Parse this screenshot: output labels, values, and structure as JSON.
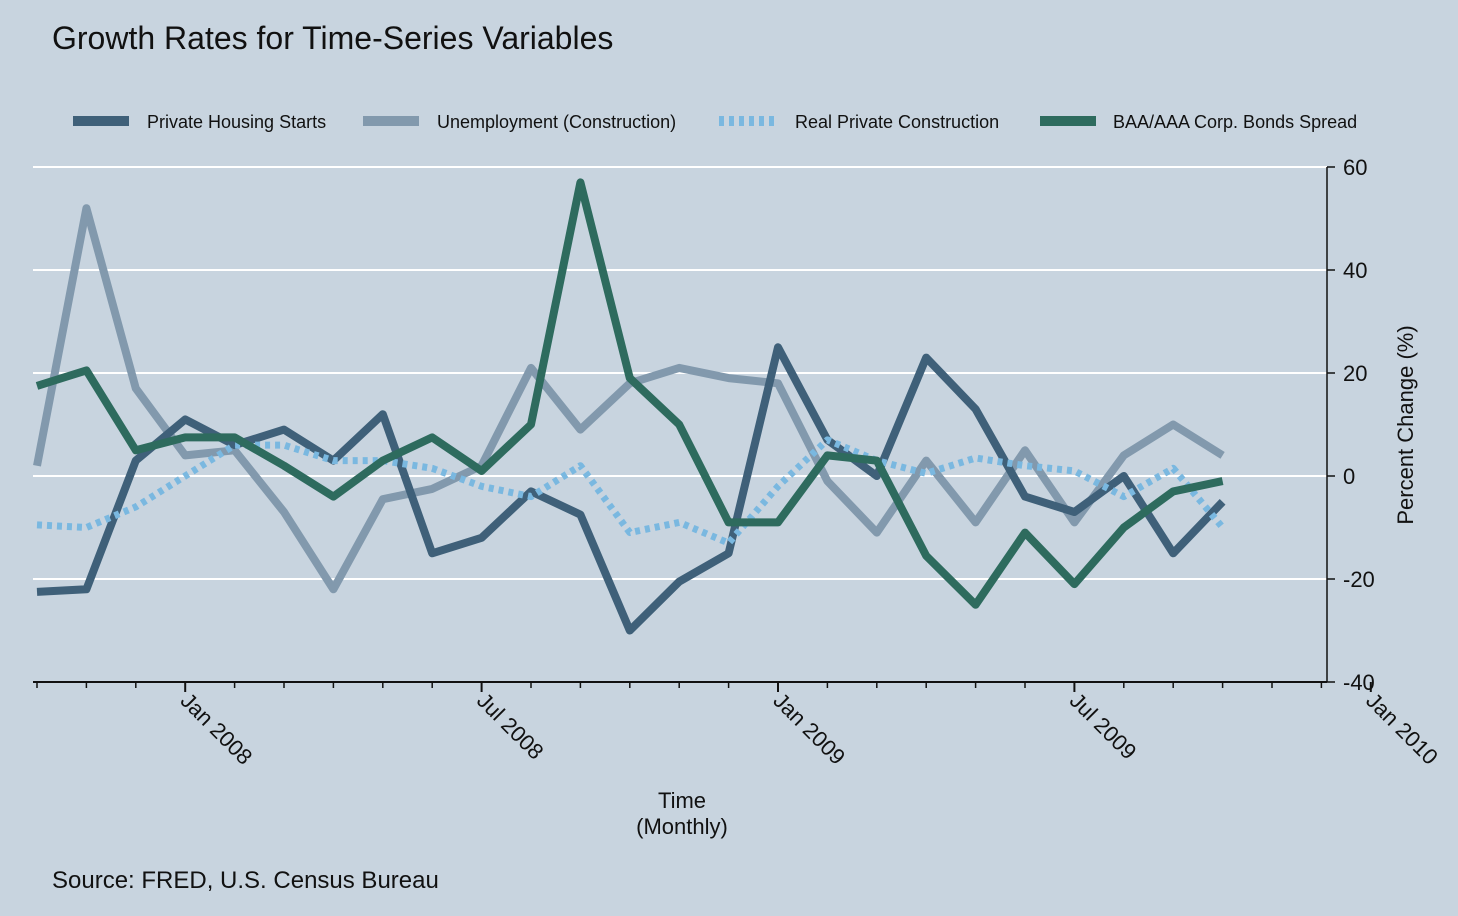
{
  "chart_data": {
    "type": "line",
    "title": "Growth Rates for Time-Series Variables",
    "xlabel_line1": "Time",
    "xlabel_line2": "(Monthly)",
    "ylabel": "Percent Change (%)",
    "source": "Source: FRED, U.S. Census Bureau",
    "ylim": [
      -40,
      60
    ],
    "yticks": [
      -40,
      -20,
      0,
      20,
      40,
      60
    ],
    "ytick_labels": [
      "-40",
      "-20",
      "0",
      "20",
      "40",
      "60"
    ],
    "xlim": [
      "2007-10",
      "2010-01"
    ],
    "xtick_labels": [
      "Jan 2008",
      "Jul 2008",
      "Jan 2009",
      "Jul 2009",
      "Jan 2010"
    ],
    "x": [
      "2007-10",
      "2007-11",
      "2007-12",
      "2008-01",
      "2008-02",
      "2008-03",
      "2008-04",
      "2008-05",
      "2008-06",
      "2008-07",
      "2008-08",
      "2008-09",
      "2008-10",
      "2008-11",
      "2008-12",
      "2009-01",
      "2009-02",
      "2009-03",
      "2009-04",
      "2009-05",
      "2009-06",
      "2009-07",
      "2009-08",
      "2009-09",
      "2009-10",
      "2009-11",
      "2009-12",
      "2010-01"
    ],
    "grid": true,
    "legend_position": "top",
    "series": [
      {
        "name": "Private Housing Starts",
        "color": "#3f6079",
        "dash": false,
        "values": [
          -22.5,
          -22,
          3,
          11,
          6,
          9,
          3,
          12,
          -15,
          -12,
          -3,
          -7.5,
          -30,
          -20.5,
          -15,
          25,
          7,
          0,
          23,
          13,
          -4,
          -7,
          0,
          -15,
          -5,
          null,
          null,
          null
        ]
      },
      {
        "name": "Unemployment (Construction)",
        "color": "#8299ad",
        "dash": false,
        "values": [
          2,
          52,
          17,
          4,
          5,
          -7,
          -22,
          -4.5,
          -2.5,
          2,
          21,
          9,
          18,
          21,
          19,
          18,
          -1,
          -11,
          3,
          -9,
          5,
          -9,
          4,
          10,
          4,
          null,
          null,
          null
        ]
      },
      {
        "name": "Real Private Construction",
        "color": "#7ab8e0",
        "dash": true,
        "values": [
          -9.5,
          -10,
          -6,
          0,
          6,
          6,
          3,
          3,
          1.5,
          -2,
          -4,
          2,
          -11,
          -9,
          -13,
          -2,
          7,
          3,
          0.5,
          3.5,
          2,
          1,
          -4,
          1.5,
          -10,
          null,
          null,
          null
        ]
      },
      {
        "name": "BAA/AAA Corp. Bonds Spread",
        "color": "#2e6b5e",
        "dash": false,
        "values": [
          17.5,
          20.5,
          5,
          7.5,
          7.5,
          2,
          -4,
          3,
          7.5,
          1,
          10,
          57,
          19,
          10,
          -9,
          -9,
          4,
          3,
          -15.5,
          -25,
          -11,
          -21,
          -10,
          -3,
          -1,
          null,
          null,
          null
        ]
      }
    ]
  }
}
